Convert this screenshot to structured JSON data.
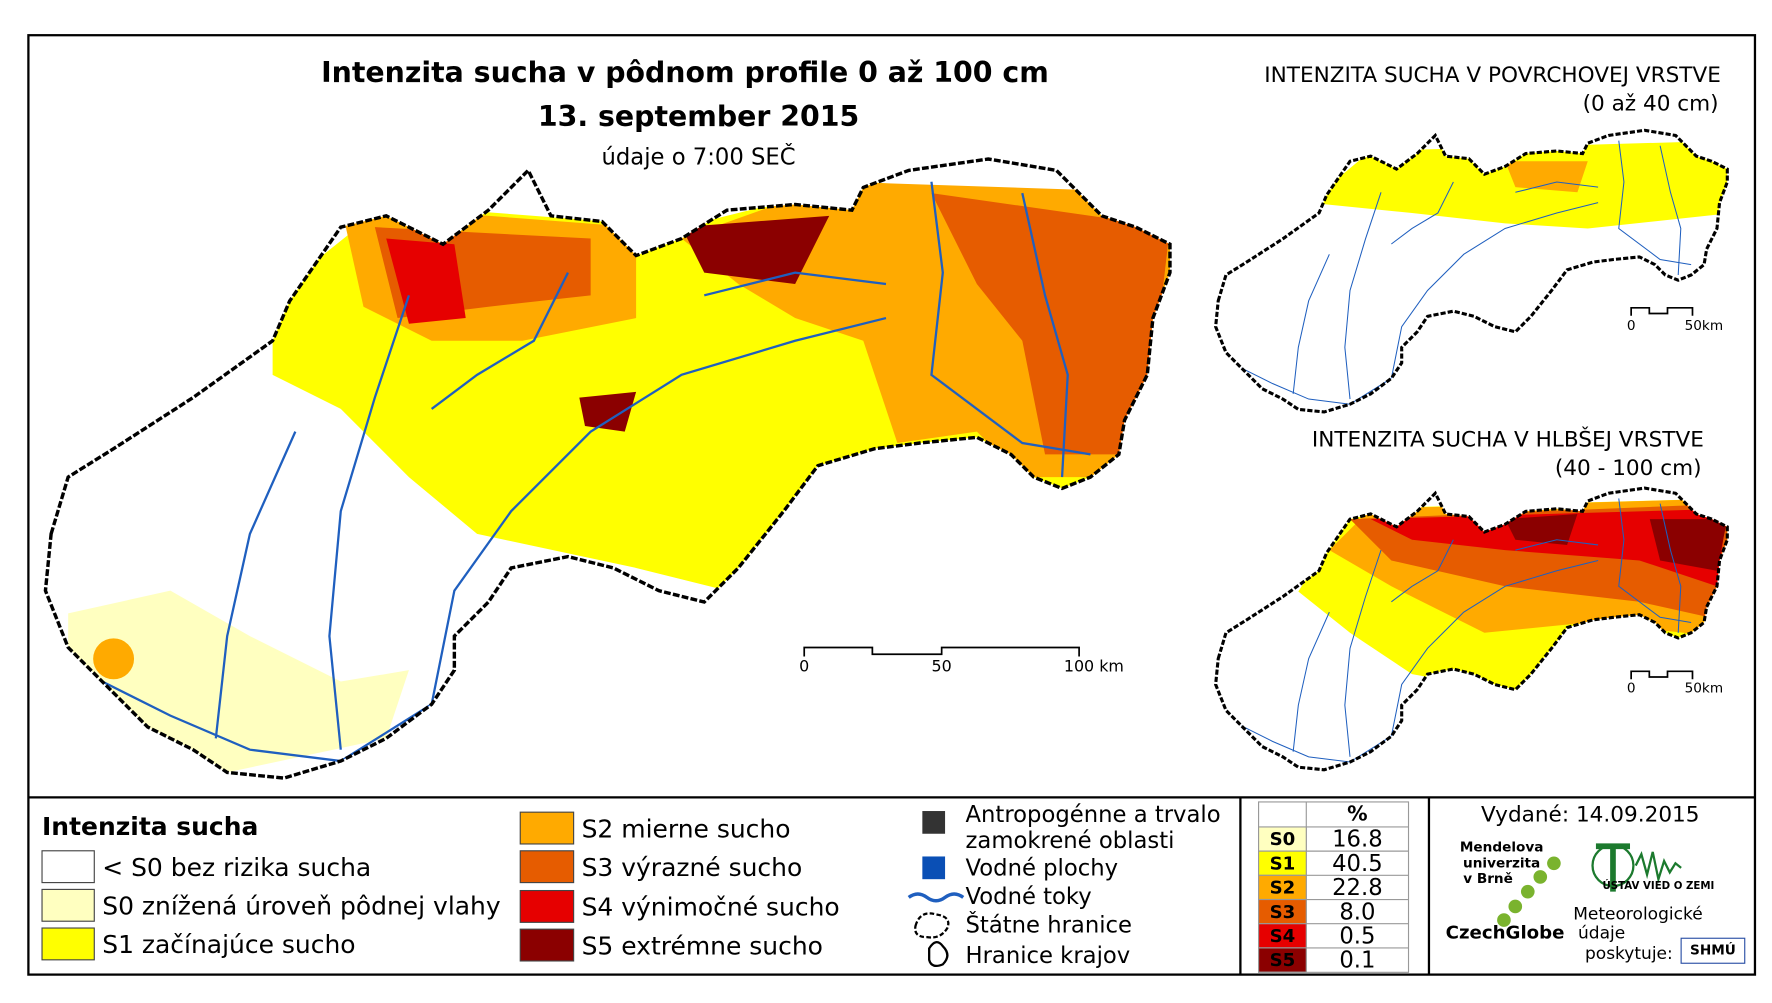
{
  "title": "Intenzita sucha v pôdnom profile 0 až 100 cm",
  "date": "13. september 2015",
  "subtitle": "údaje o 7:00 SEČ",
  "main_scale": [
    "0",
    "50",
    "100 km"
  ],
  "insets": [
    {
      "title": "INTENZITA SUCHA V POVRCHOVEJ VRSTVE",
      "subtitle": "(0 až 40 cm)",
      "scale": [
        "0",
        "50km"
      ]
    },
    {
      "title": "INTENZITA SUCHA V HLBŠEJ VRSTVE",
      "subtitle": "(40 - 100 cm)",
      "scale": [
        "0",
        "50km"
      ]
    }
  ],
  "legend": {
    "title": "Intenzita sucha",
    "classes": [
      {
        "label": "< S0 bez rizika sucha",
        "color": "#ffffff"
      },
      {
        "label": "S0 znížená úroveň pôdnej vlahy",
        "color": "#ffffc0"
      },
      {
        "label": "S1 začínajúce sucho",
        "color": "#ffff00"
      },
      {
        "label": "S2 mierne sucho",
        "color": "#ffaa00"
      },
      {
        "label": "S3 výrazné sucho",
        "color": "#e65c00"
      },
      {
        "label": "S4 výnimočné sucho",
        "color": "#e60000"
      },
      {
        "label": "S5 extrémne sucho",
        "color": "#8b0000"
      }
    ],
    "features": [
      {
        "lines": [
          "Antropogénne a trvalo",
          "zamokrené oblasti"
        ]
      },
      {
        "lines": [
          "Vodné plochy"
        ]
      },
      {
        "lines": [
          "Vodné toky"
        ]
      },
      {
        "lines": [
          "Štátne hranice"
        ]
      },
      {
        "lines": [
          "Hranice krajov"
        ]
      }
    ]
  },
  "table": {
    "header": "%",
    "rows": [
      [
        "S0",
        "16.8"
      ],
      [
        "S1",
        "40.5"
      ],
      [
        "S2",
        "22.8"
      ],
      [
        "S3",
        "8.0"
      ],
      [
        "S4",
        "0.5"
      ],
      [
        "S5",
        "0.1"
      ]
    ]
  },
  "issued": "Vydané: 14.09.2015",
  "logos": {
    "mendel": [
      "Mendelova",
      "univerzita",
      "v Brně"
    ],
    "czechglobe": "CzechGlobe",
    "ustav": "ÚSTAV VIED O ZEMI",
    "meteo": [
      "Meteorologické",
      "údaje",
      "poskytuje:"
    ],
    "shmu": "SHMÚ"
  }
}
